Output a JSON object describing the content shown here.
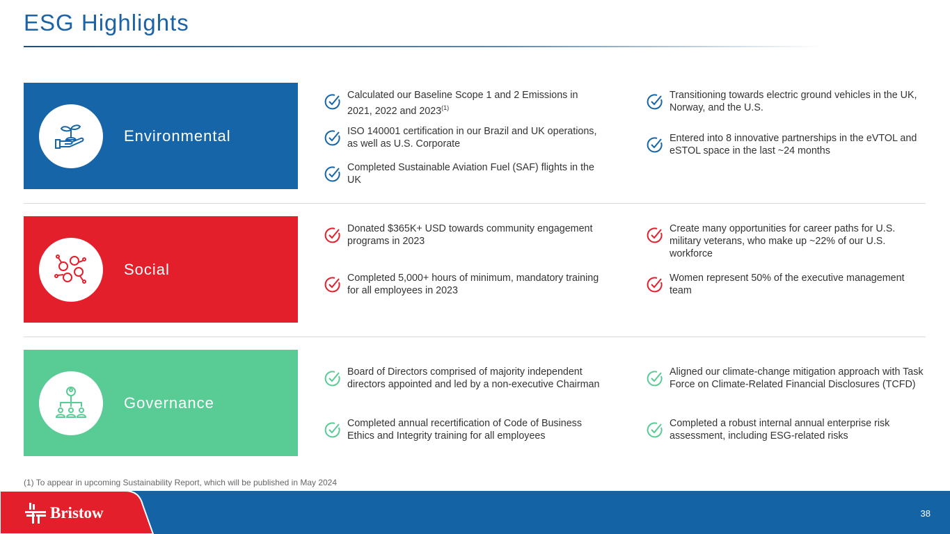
{
  "title": "ESG Highlights",
  "colors": {
    "environmental": "#1565a8",
    "social": "#e31f2b",
    "governance": "#59cb95",
    "title": "#1b63a5"
  },
  "sections": [
    {
      "label": "Environmental",
      "icon": "plant-in-hand-icon",
      "items": [
        {
          "text": "Calculated our Baseline Scope 1 and 2 Emissions in 2021, 2022 and 2023",
          "sup": "(1)"
        },
        {
          "text": "ISO 140001 certification in our Brazil and UK operations, as well as U.S. Corporate"
        },
        {
          "text": "Completed Sustainable Aviation Fuel (SAF) flights in the UK"
        },
        {
          "text": "Transitioning towards electric ground vehicles in the UK, Norway, and the U.S."
        },
        {
          "text": "Entered into 8 innovative partnerships in the eVTOL and eSTOL space in the last ~24 months"
        }
      ]
    },
    {
      "label": "Social",
      "icon": "people-network-icon",
      "items": [
        {
          "text": "Donated $365K+ USD towards community engagement programs in 2023"
        },
        {
          "text": "Completed 5,000+ hours of minimum, mandatory training for all employees in 2023"
        },
        {
          "text": "Create many opportunities for career paths for U.S. military veterans, who make up ~22% of our U.S. workforce"
        },
        {
          "text": "Women represent 50% of the executive management team"
        }
      ]
    },
    {
      "label": "Governance",
      "icon": "org-hierarchy-icon",
      "items": [
        {
          "text": "Board of Directors comprised of majority independent directors appointed and led by a non-executive Chairman"
        },
        {
          "text": "Completed annual recertification of Code of Business Ethics and Integrity training for all employees"
        },
        {
          "text": "Aligned our climate-change mitigation approach with Task Force on Climate-Related Financial Disclosures (TCFD)"
        },
        {
          "text": "Completed a robust internal annual enterprise risk assessment, including ESG-related risks"
        }
      ]
    }
  ],
  "footnote": "(1) To appear in upcoming Sustainability Report, which will be published in May 2024",
  "logo": "Bristow",
  "page_number": "38"
}
